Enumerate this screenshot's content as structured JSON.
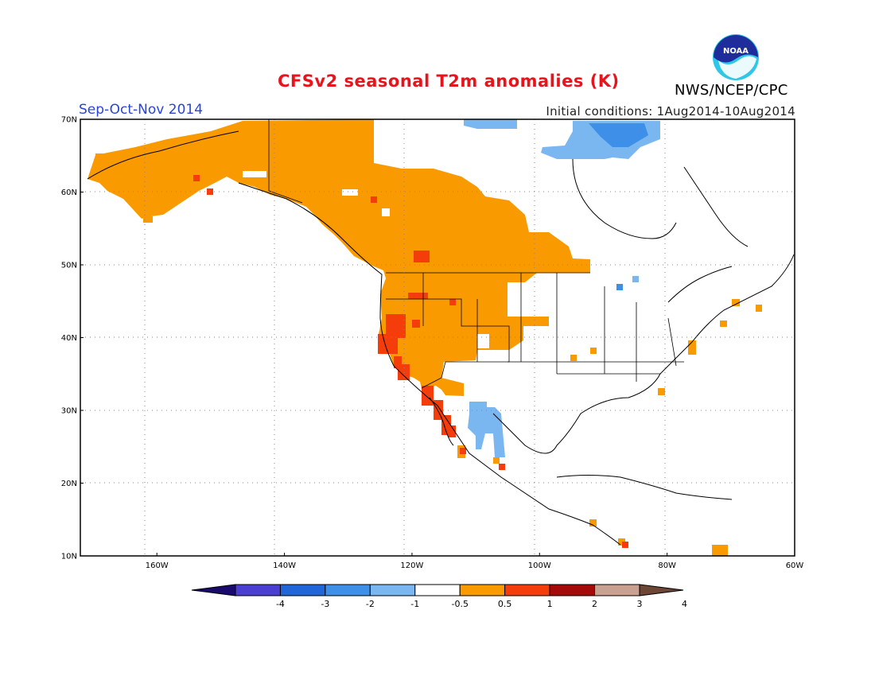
{
  "header": {
    "title": "CFSv2 seasonal T2m anomalies (K)",
    "season": "Sep-Oct-Nov 2014",
    "initial_conditions": "Initial conditions: 1Aug2014-10Aug2014",
    "agency": "NWS/NCEP/CPC",
    "logo_text": "NOAA"
  },
  "map": {
    "projection": "lat-lon",
    "lon_range": [
      -172,
      -60
    ],
    "lat_range": [
      10,
      70
    ],
    "lon_ticks": [
      "160W",
      "140W",
      "120W",
      "100W",
      "80W",
      "60W"
    ],
    "lon_tick_values": [
      -160,
      -140,
      -120,
      -100,
      -80,
      -60
    ],
    "lat_ticks": [
      "10N",
      "20N",
      "30N",
      "40N",
      "50N",
      "60N",
      "70N"
    ],
    "lat_tick_values": [
      10,
      20,
      30,
      40,
      50,
      60,
      70
    ],
    "grid": "dotted"
  },
  "colorbar": {
    "labels": [
      "-4",
      "-3",
      "-2",
      "-1",
      "-0.5",
      "0.5",
      "1",
      "2",
      "3",
      "4"
    ],
    "colors": [
      "#1a0a6e",
      "#4a3fd0",
      "#2166d9",
      "#3d8fe8",
      "#7ab6f0",
      "#ffffff",
      "#f99a00",
      "#f53d0c",
      "#a40a0a",
      "#c8a191",
      "#6e4636"
    ]
  },
  "colors": {
    "warm1": "#f99a00",
    "warm2": "#f53d0c",
    "cool1": "#7ab6f0",
    "cool2": "#3d8fe8"
  }
}
